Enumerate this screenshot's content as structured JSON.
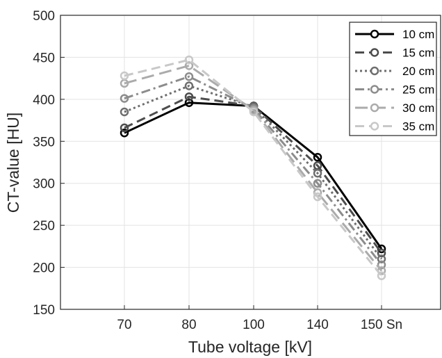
{
  "chart_data": {
    "type": "line",
    "categories": [
      "70",
      "80",
      "100",
      "140",
      "150 Sn"
    ],
    "xlabel": "Tube voltage [kV]",
    "ylabel": "CT-value [HU]",
    "ylim": [
      150,
      500
    ],
    "yticks": [
      150,
      200,
      250,
      300,
      350,
      400,
      450,
      500
    ],
    "grid": true,
    "legend": "top-right",
    "series": [
      {
        "name": "10 cm",
        "values": [
          360,
          396,
          392,
          331,
          222
        ],
        "color": "#000000",
        "dash": "solid"
      },
      {
        "name": "15 cm",
        "values": [
          366,
          403,
          392,
          321,
          217
        ],
        "color": "#4d4d4d",
        "dash": "dashed"
      },
      {
        "name": "20 cm",
        "values": [
          385,
          416,
          391,
          312,
          210
        ],
        "color": "#6e6e6e",
        "dash": "dotted"
      },
      {
        "name": "25 cm",
        "values": [
          401,
          427,
          389,
          300,
          203
        ],
        "color": "#8c8c8c",
        "dash": "dashdot"
      },
      {
        "name": "30 cm",
        "values": [
          419,
          440,
          387,
          289,
          196
        ],
        "color": "#ababab",
        "dash": "longdash"
      },
      {
        "name": "35 cm",
        "values": [
          428,
          447,
          385,
          284,
          190
        ],
        "color": "#c8c8c8",
        "dash": "dashed"
      }
    ]
  }
}
